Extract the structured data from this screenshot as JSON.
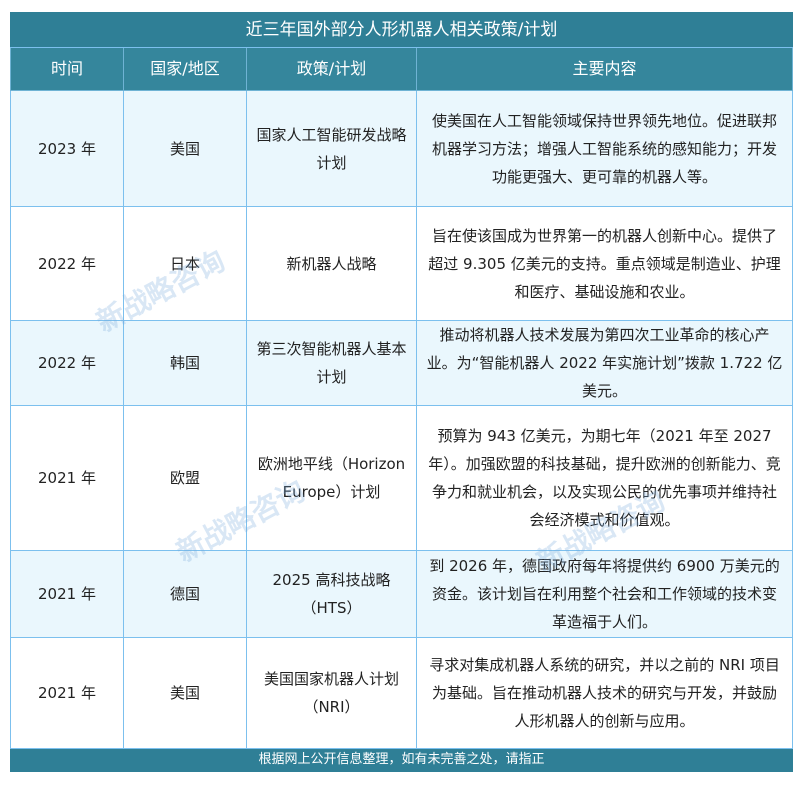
{
  "title": "近三年国外部分人形机器人相关政策/计划",
  "headers": [
    "时间",
    "国家/地区",
    "政策/计划",
    "主要内容"
  ],
  "rows": [
    {
      "time": "2023 年",
      "country": "美国",
      "policy": "国家人工智能研发战略计划",
      "content": "使美国在人工智能领域保持世界领先地位。促进联邦机器学习方法；增强人工智能系统的感知能力；开发功能更强大、更可靠的机器人等。"
    },
    {
      "time": "2022 年",
      "country": "日本",
      "policy": "新机器人战略",
      "content": "旨在使该国成为世界第一的机器人创新中心。提供了超过 9.305 亿美元的支持。重点领域是制造业、护理和医疗、基础设施和农业。"
    },
    {
      "time": "2022 年",
      "country": "韩国",
      "policy": "第三次智能机器人基本计划",
      "content": "推动将机器人技术发展为第四次工业革命的核心产业。为“智能机器人 2022 年实施计划”拨款 1.722 亿美元。"
    },
    {
      "time": "2021 年",
      "country": "欧盟",
      "policy": "欧洲地平线（Horizon Europe）计划",
      "content": "预算为 943 亿美元，为期七年（2021 年至 2027 年）。加强欧盟的科技基础，提升欧洲的创新能力、竞争力和就业机会，以及实现公民的优先事项并维持社会经济模式和价值观。"
    },
    {
      "time": "2021 年",
      "country": "德国",
      "policy": "2025 高科技战略（HTS）",
      "content": "到 2026 年，德国政府每年将提供约 6900 万美元的资金。该计划旨在利用整个社会和工作领域的技术变革造福于人们。"
    },
    {
      "time": "2021 年",
      "country": "美国",
      "policy": "美国国家机器人计划（NRI）",
      "content": "寻求对集成机器人系统的研究，并以之前的 NRI 项目为基础。旨在推动机器人技术的研究与开发，并鼓励人形机器人的创新与应用。"
    }
  ],
  "footer": "根据网上公开信息整理，如有未完善之处，请指正",
  "watermark": "新战略咨询",
  "colors": {
    "header": "#2f7f96",
    "alt_row": "#eaf7fd",
    "border": "#7cc0ee"
  }
}
